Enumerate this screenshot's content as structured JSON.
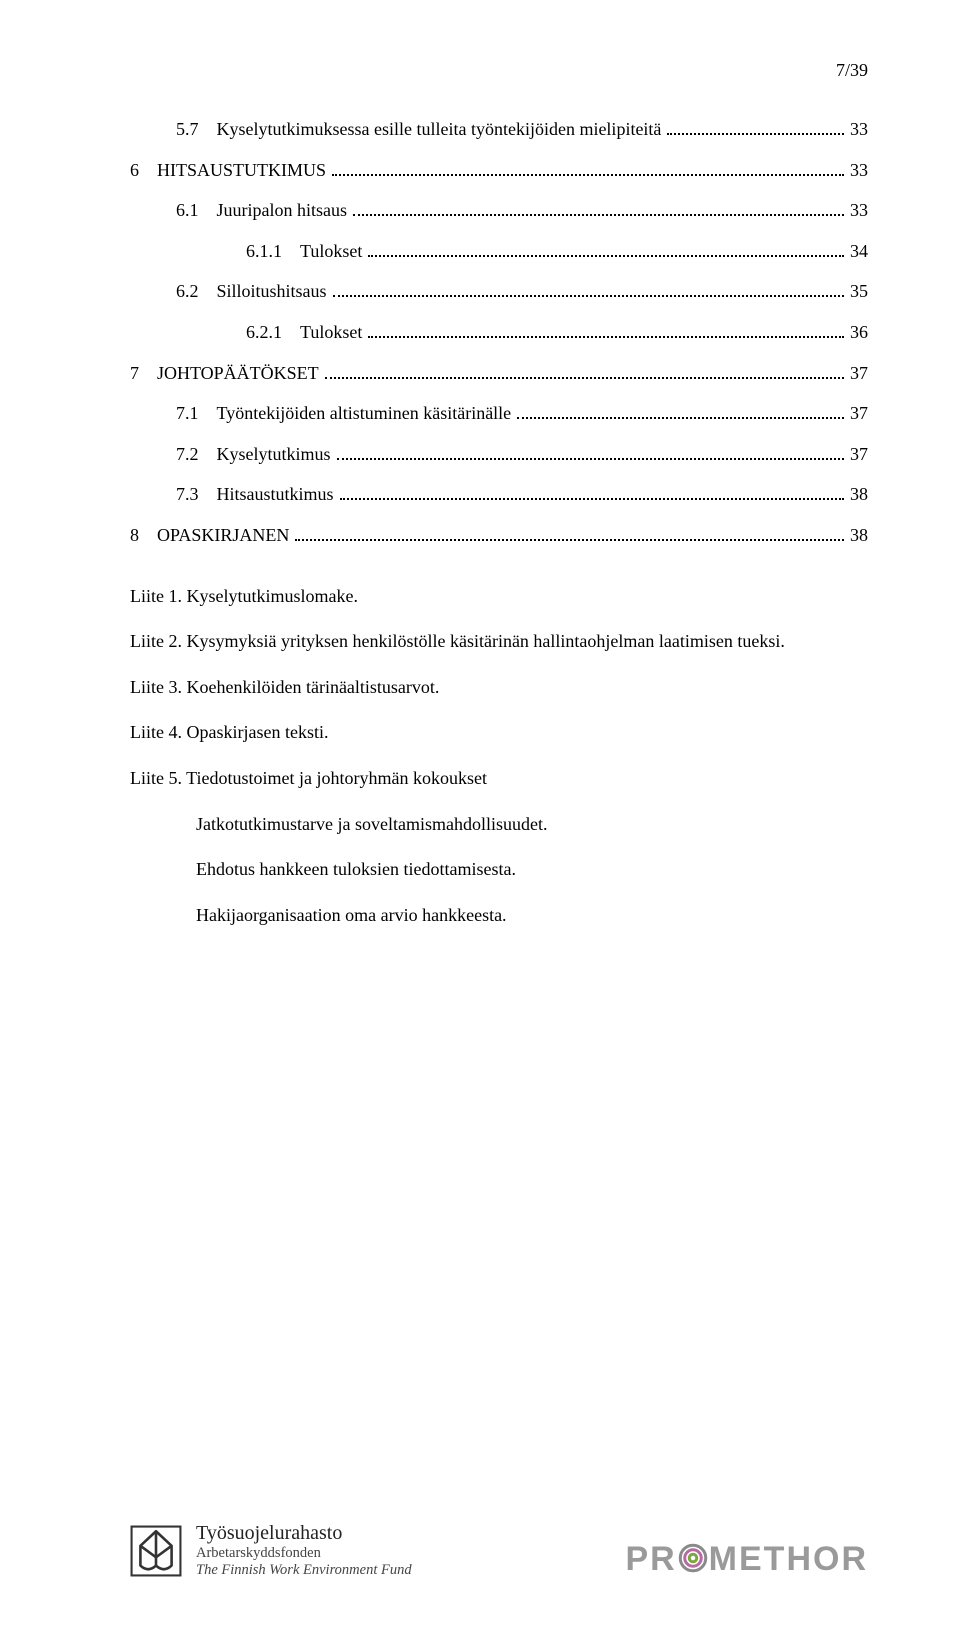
{
  "page_number": "7/39",
  "toc": [
    {
      "level": 1,
      "num": "5.7",
      "title": "Kyselytutkimuksessa esille tulleita työntekijöiden mielipiteitä",
      "page": "33"
    },
    {
      "level": 0,
      "num": "6",
      "title": "HITSAUSTUTKIMUS",
      "page": "33"
    },
    {
      "level": 1,
      "num": "6.1",
      "title": "Juuripalon hitsaus",
      "page": "33"
    },
    {
      "level": 2,
      "num": "6.1.1",
      "title": "Tulokset",
      "page": "34"
    },
    {
      "level": 1,
      "num": "6.2",
      "title": "Silloitushitsaus",
      "page": "35"
    },
    {
      "level": 2,
      "num": "6.2.1",
      "title": "Tulokset",
      "page": "36"
    },
    {
      "level": 0,
      "num": "7",
      "title": "JOHTOPÄÄTÖKSET",
      "page": "37"
    },
    {
      "level": 1,
      "num": "7.1",
      "title": "Työntekijöiden altistuminen käsitärinälle",
      "page": "37"
    },
    {
      "level": 1,
      "num": "7.2",
      "title": "Kyselytutkimus",
      "page": "37"
    },
    {
      "level": 1,
      "num": "7.3",
      "title": "Hitsaustutkimus",
      "page": "38"
    },
    {
      "level": 0,
      "num": "8",
      "title": "OPASKIRJANEN",
      "page": "38"
    }
  ],
  "appendix": {
    "l1": "Liite 1.   Kyselytutkimuslomake.",
    "l2": "Liite 2.   Kysymyksiä yrityksen henkilöstölle käsitärinän hallintaohjelman laatimisen tueksi.",
    "l3": "Liite 3.   Koehenkilöiden tärinäaltistusarvot.",
    "l4": "Liite 4.   Opaskirjasen teksti.",
    "l5": "Liite 5.   Tiedotustoimet ja johtoryhmän kokoukset",
    "sub1": "Jatkotutkimustarve ja soveltamismahdollisuudet.",
    "sub2": "Ehdotus hankkeen tuloksien tiedottamisesta.",
    "sub3": "Hakijaorganisaation oma arvio hankkeesta."
  },
  "footer": {
    "tsr": {
      "line1": "Työsuojelurahasto",
      "line2": "Arbetarskyddsfonden",
      "line3": "The Finnish Work Environment Fund"
    },
    "promethor": {
      "pre": "PR",
      "post": "METHOR"
    }
  },
  "colors": {
    "text": "#000000",
    "footer_gray": "#9a9a9a",
    "ring_outer": "#8a8a8a",
    "ring_mid": "#b86aa3",
    "ring_inner": "#7aa83f"
  }
}
